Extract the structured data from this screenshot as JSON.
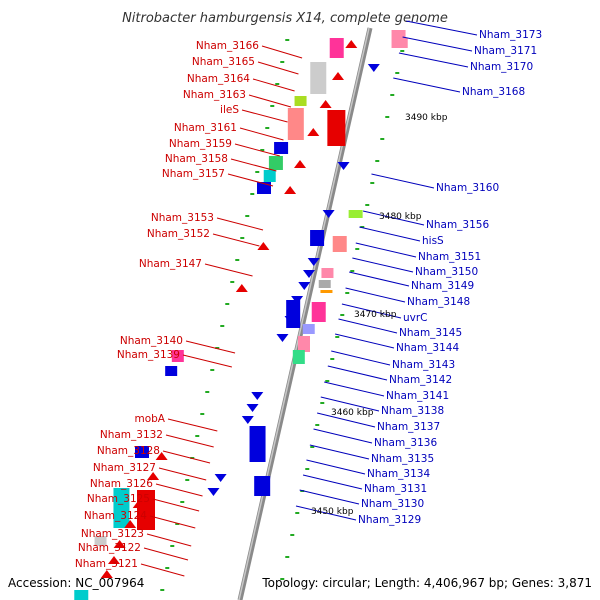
{
  "title": "Nitrobacter hamburgensis X14, complete genome",
  "footer": {
    "accession": "Accession: NC_007964",
    "summary": "Topology: circular; Length: 4,406,967 bp; Genes: 3,871"
  },
  "scale_marks": [
    "3490 kbp",
    "3480 kbp",
    "3470 kbp",
    "3460 kbp",
    "3450 kbp"
  ],
  "colors": {
    "forward_strand": "#e60000",
    "reverse_strand": "#0000dd",
    "forward_label": "#cc0000",
    "reverse_label": "#0000bb",
    "backbone": "#888888"
  },
  "left_labels": [
    "Nham_3166",
    "Nham_3165",
    "Nham_3164",
    "Nham_3163",
    "ileS",
    "Nham_3161",
    "Nham_3159",
    "Nham_3158",
    "Nham_3157",
    "Nham_3153",
    "Nham_3152",
    "Nham_3147",
    "Nham_3140",
    "Nham_3139",
    "mobA",
    "Nham_3132",
    "Nham_3128",
    "Nham_3127",
    "Nham_3126",
    "Nham_3125",
    "Nham_3124",
    "Nham_3123",
    "Nham_3122",
    "Nham_3121"
  ],
  "right_labels": [
    "Nham_3173",
    "Nham_3171",
    "Nham_3170",
    "Nham_3168",
    "Nham_3160",
    "Nham_3156",
    "hisS",
    "Nham_3151",
    "Nham_3150",
    "Nham_3149",
    "Nham_3148",
    "uvrC",
    "Nham_3145",
    "Nham_3144",
    "Nham_3143",
    "Nham_3142",
    "Nham_3141",
    "Nham_3138",
    "Nham_3137",
    "Nham_3136",
    "Nham_3135",
    "Nham_3134",
    "Nham_3131",
    "Nham_3130",
    "Nham_3129"
  ]
}
